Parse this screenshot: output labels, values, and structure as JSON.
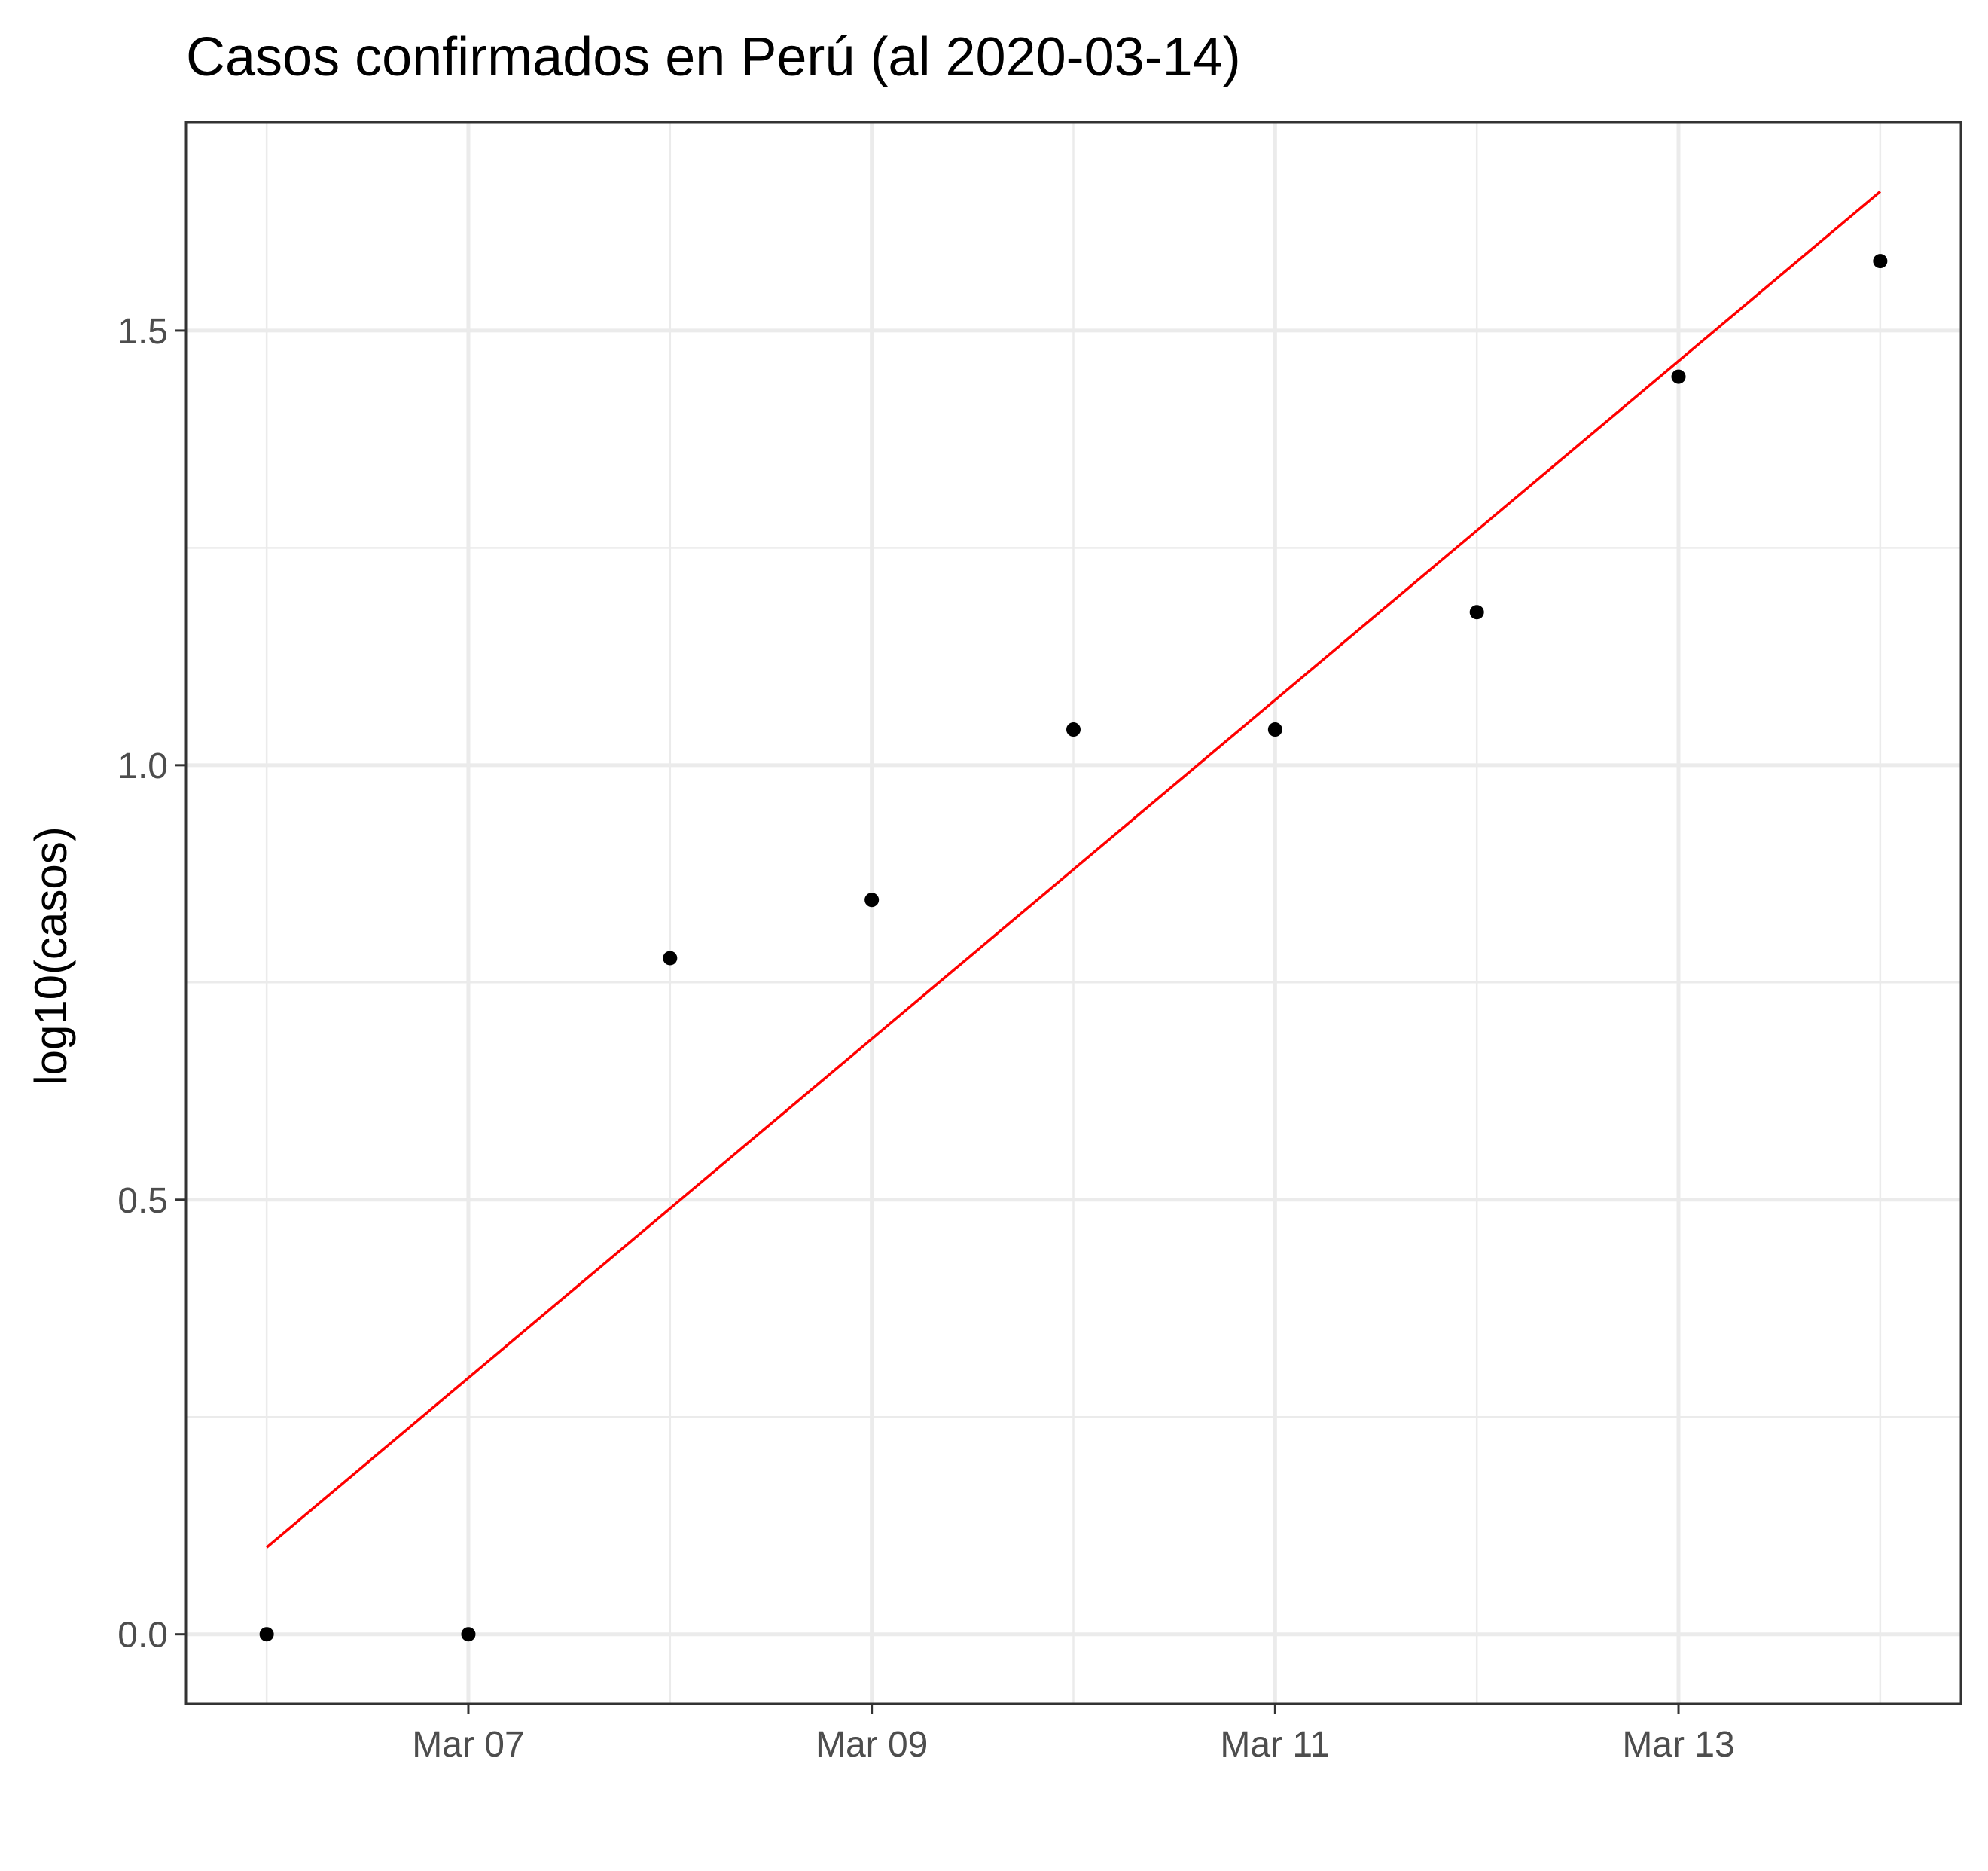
{
  "chart_data": {
    "type": "scatter",
    "title": "Casos confirmados en Perú (al 2020-03-14)",
    "xlabel": "",
    "ylabel": "log10(casos)",
    "x": [
      "2020-03-06",
      "2020-03-07",
      "2020-03-08",
      "2020-03-09",
      "2020-03-10",
      "2020-03-11",
      "2020-03-12",
      "2020-03-13",
      "2020-03-14"
    ],
    "y": [
      0.0,
      0.0,
      0.778,
      0.845,
      1.041,
      1.041,
      1.176,
      1.447,
      1.58
    ],
    "fit_line": {
      "x": [
        "2020-03-06",
        "2020-03-14"
      ],
      "y": [
        0.1,
        1.66
      ],
      "color": "#ff0000"
    },
    "x_ticks": [
      {
        "value": "2020-03-07",
        "label": "Mar 07"
      },
      {
        "value": "2020-03-09",
        "label": "Mar 09"
      },
      {
        "value": "2020-03-11",
        "label": "Mar 11"
      },
      {
        "value": "2020-03-13",
        "label": "Mar 13"
      }
    ],
    "x_minor_ticks": [
      "2020-03-06",
      "2020-03-08",
      "2020-03-10",
      "2020-03-12",
      "2020-03-14"
    ],
    "y_ticks": [
      {
        "value": 0.0,
        "label": "0.0"
      },
      {
        "value": 0.5,
        "label": "0.5"
      },
      {
        "value": 1.0,
        "label": "1.0"
      },
      {
        "value": 1.5,
        "label": "1.5"
      }
    ],
    "y_minor_ticks": [
      0.25,
      0.75,
      1.25
    ],
    "xlim": [
      "2020-03-05T14:24",
      "2020-03-14T09:36"
    ],
    "ylim": [
      -0.08,
      1.74
    ],
    "grid": true,
    "point_color": "#000000"
  }
}
